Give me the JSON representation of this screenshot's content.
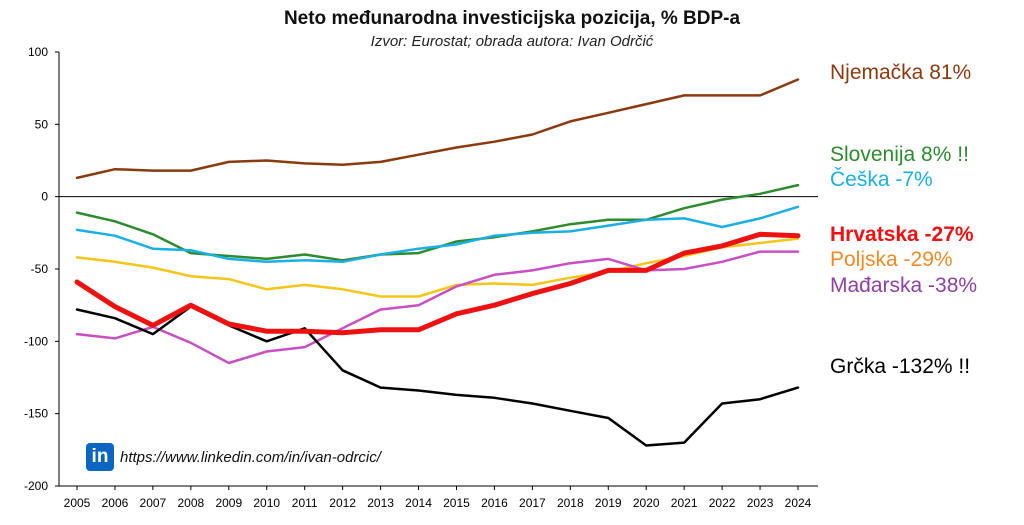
{
  "chart_data": {
    "type": "line",
    "title": "Neto međunarodna investicijska pozicija, % BDP-a",
    "subtitle": "Izvor: Eurostat; obrada autora: Ivan Odrčić",
    "x": [
      "2005",
      "2006",
      "2007",
      "2008",
      "2009",
      "2010",
      "2011",
      "2012",
      "2013",
      "2014",
      "2015",
      "2016",
      "2017",
      "2018",
      "2019",
      "2020",
      "2021",
      "2022",
      "2023",
      "2024"
    ],
    "ylim": [
      -200,
      100
    ],
    "yticks": [
      100,
      50,
      0,
      -50,
      -100,
      -150,
      -200
    ],
    "xlabel": "",
    "ylabel": "",
    "series": [
      {
        "name": "Njemačka",
        "label": "Njemačka 81%",
        "color": "#8b3a0f",
        "width": 2.5,
        "values": [
          13,
          19,
          18,
          18,
          24,
          25,
          23,
          22,
          24,
          29,
          34,
          38,
          43,
          52,
          58,
          64,
          70,
          70,
          70,
          81
        ]
      },
      {
        "name": "Slovenija",
        "label": "Slovenija 8% !!",
        "color": "#2e8b2e",
        "width": 2.5,
        "values": [
          -11,
          -17,
          -26,
          -39,
          -41,
          -43,
          -40,
          -44,
          -40,
          -39,
          -31,
          -28,
          -24,
          -19,
          -16,
          -16,
          -8,
          -2,
          2,
          8
        ]
      },
      {
        "name": "Češka",
        "label": "Češka -7%",
        "color": "#1aafe6",
        "width": 2.5,
        "values": [
          -23,
          -27,
          -36,
          -37,
          -43,
          -45,
          -44,
          -45,
          -40,
          -36,
          -33,
          -27,
          -25,
          -24,
          -20,
          -16,
          -15,
          -21,
          -15,
          -7
        ]
      },
      {
        "name": "Poljska",
        "label": "Poljska -29%",
        "color": "#f5c518",
        "width": 2.5,
        "values": [
          -42,
          -45,
          -49,
          -55,
          -57,
          -64,
          -61,
          -64,
          -69,
          -69,
          -61,
          -60,
          -61,
          -56,
          -52,
          -46,
          -41,
          -35,
          -32,
          -29
        ]
      },
      {
        "name": "Mađarska",
        "label": "Mađarska -38%",
        "color": "#c94fc4",
        "width": 2.5,
        "values": [
          -95,
          -98,
          -90,
          -101,
          -115,
          -107,
          -104,
          -91,
          -78,
          -75,
          -62,
          -54,
          -51,
          -46,
          -43,
          -51,
          -50,
          -45,
          -38,
          -38
        ]
      },
      {
        "name": "Grčka",
        "label": "Grčka -132% !!",
        "color": "#000000",
        "width": 2.5,
        "values": [
          -78,
          -84,
          -95,
          -76,
          -89,
          -100,
          -91,
          -120,
          -132,
          -134,
          -137,
          -139,
          -143,
          -148,
          -153,
          -172,
          -170,
          -143,
          -140,
          -132
        ]
      },
      {
        "name": "Hrvatska",
        "label": "Hrvatska -27%",
        "color": "#ee1111",
        "width": 5,
        "values": [
          -59,
          -76,
          -89,
          -75,
          -88,
          -93,
          -93,
          -94,
          -92,
          -92,
          -81,
          -75,
          -67,
          -60,
          -51,
          -51,
          -39,
          -34,
          -26,
          -27
        ]
      }
    ]
  },
  "legend": [
    {
      "name": "njemacka",
      "text": "Njemačka 81%",
      "color": "#8b3a0f",
      "bold": false
    },
    {
      "name": "slovenija",
      "text": "Slovenija 8% !!",
      "color": "#2e8b2e",
      "bold": false
    },
    {
      "name": "ceska",
      "text": "Češka -7%",
      "color": "#1aafe6",
      "bold": false
    },
    {
      "name": "hrvatska",
      "text": "Hrvatska -27%",
      "color": "#ee1111",
      "bold": true
    },
    {
      "name": "poljska",
      "text": "Poljska -29%",
      "color": "#f08a24",
      "bold": false
    },
    {
      "name": "madarska",
      "text": "Mađarska -38%",
      "color": "#8e3fa8",
      "bold": false
    },
    {
      "name": "grcka",
      "text": "Grčka -132% !!",
      "color": "#000000",
      "bold": false
    }
  ],
  "credit": {
    "logo_text": "in",
    "url_text": "https://www.linkedin.com/in/ivan-odrcic/"
  }
}
